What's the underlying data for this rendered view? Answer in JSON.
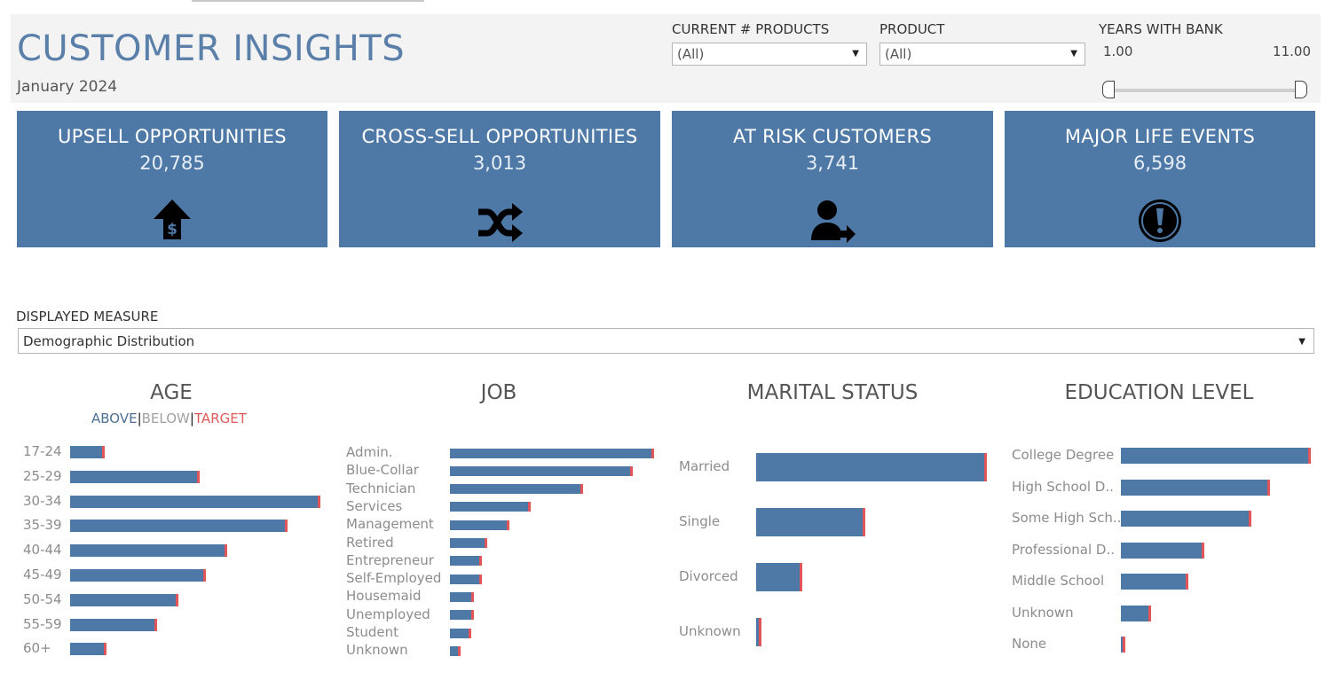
{
  "header": {
    "title": "CUSTOMER INSIGHTS",
    "subtitle": "January 2024"
  },
  "filters": {
    "current_products": {
      "label": "CURRENT # PRODUCTS",
      "value": "(All)"
    },
    "product": {
      "label": "PRODUCT",
      "value": "(All)"
    },
    "years_with_bank": {
      "label": "YEARS WITH BANK",
      "min": "1.00",
      "max": "11.00"
    }
  },
  "kpis": [
    {
      "title": "UPSELL OPPORTUNITIES",
      "value": "20,785",
      "icon": "dollar-up-arrow-icon"
    },
    {
      "title": "CROSS-SELL OPPORTUNITIES",
      "value": "3,013",
      "icon": "shuffle-icon"
    },
    {
      "title": "AT RISK CUSTOMERS",
      "value": "3,741",
      "icon": "user-leaving-icon"
    },
    {
      "title": "MAJOR LIFE EVENTS",
      "value": "6,598",
      "icon": "exclamation-circle-icon"
    }
  ],
  "measure": {
    "label": "DISPLAYED MEASURE",
    "value": "Demographic Distribution"
  },
  "legend": {
    "above": "ABOVE",
    "below": "BELOW",
    "target": "TARGET",
    "separator": "|"
  },
  "colors": {
    "bar": "#4e79a7",
    "target": "#e15759",
    "title": "#5a7fa8",
    "kpi": "#4e79a7"
  },
  "chart_data": [
    {
      "type": "bar",
      "orientation": "horizontal",
      "title": "AGE",
      "categories": [
        "17-24",
        "25-29",
        "30-34",
        "35-39",
        "40-44",
        "45-49",
        "50-54",
        "55-59",
        "60+"
      ],
      "values": [
        37,
        144,
        280,
        243,
        175,
        151,
        120,
        96,
        39
      ]
    },
    {
      "type": "bar",
      "orientation": "horizontal",
      "title": "JOB",
      "categories": [
        "Admin.",
        "Blue-Collar",
        "Technician",
        "Services",
        "Management",
        "Retired",
        "Entrepreneur",
        "Self-Employed",
        "Housemaid",
        "Unemployed",
        "Student",
        "Unknown"
      ],
      "values": [
        228,
        204,
        148,
        89,
        65,
        40,
        34,
        34,
        25,
        25,
        22,
        10
      ]
    },
    {
      "type": "bar",
      "orientation": "horizontal",
      "title": "MARITAL STATUS",
      "categories": [
        "Married",
        "Single",
        "Divorced",
        "Unknown"
      ],
      "values": [
        258,
        121,
        50,
        4
      ]
    },
    {
      "type": "bar",
      "orientation": "horizontal",
      "title": "EDUCATION LEVEL",
      "categories": [
        "College Degree",
        "High School D..",
        "Some High Sch..",
        "Professional D..",
        "Middle School",
        "Unknown",
        "None"
      ],
      "values": [
        212,
        166,
        145,
        92,
        74,
        32,
        3
      ]
    }
  ]
}
